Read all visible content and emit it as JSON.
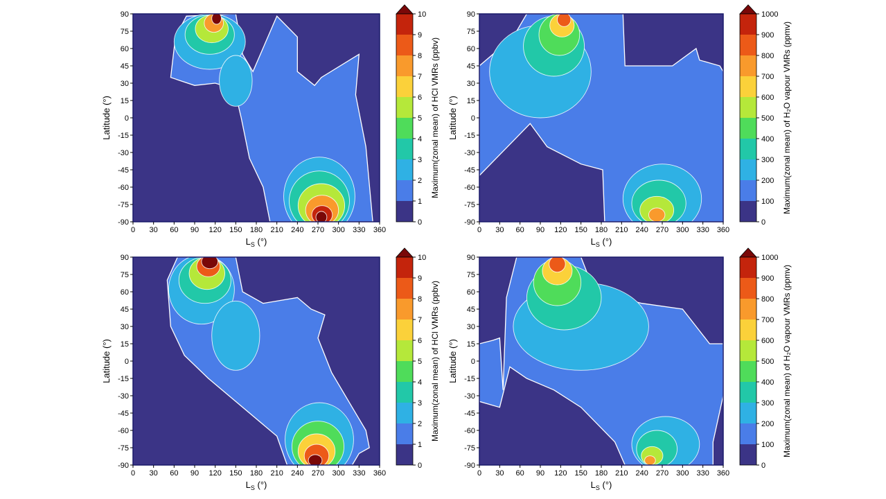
{
  "colors": {
    "levels": [
      "#3b3486",
      "#4a7de8",
      "#2fb1e4",
      "#22c8a8",
      "#4fdc5a",
      "#b5e83a",
      "#fbd13a",
      "#f99a2c",
      "#ec5a18",
      "#c4240c",
      "#7a0808"
    ],
    "contour_line": "#ffffff",
    "frame": "#1a1a6a"
  },
  "chart_data": [
    {
      "id": "hcl-top",
      "type": "heatmap",
      "xlabel": "L",
      "xlabel_sub": "S",
      "xlabel_unit": " (°)",
      "ylabel": "Latitude (°)",
      "xlim": [
        0,
        360
      ],
      "ylim": [
        -90,
        90
      ],
      "xticks": [
        "0",
        "30",
        "60",
        "90",
        "120",
        "150",
        "180",
        "210",
        "240",
        "270",
        "300",
        "330",
        "360"
      ],
      "yticks": [
        "90",
        "75",
        "60",
        "45",
        "30",
        "15",
        "0",
        "-15",
        "-30",
        "-45",
        "-60",
        "-75",
        "-90"
      ],
      "colorbar": {
        "label": "Maximum(zonal mean) of HCl VMRs (ppbv)",
        "ticks": [
          "0",
          "1",
          "2",
          "3",
          "4",
          "5",
          "6",
          "7",
          "8",
          "9",
          "10"
        ]
      },
      "features": [
        {
          "kind": "region",
          "level": 1,
          "poly": [
            [
              55,
              35
            ],
            [
              62,
              70
            ],
            [
              78,
              88
            ],
            [
              150,
              90
            ],
            [
              160,
              55
            ],
            [
              175,
              40
            ],
            [
              210,
              88
            ],
            [
              240,
              70
            ],
            [
              240,
              40
            ],
            [
              265,
              28
            ],
            [
              275,
              35
            ],
            [
              330,
              55
            ],
            [
              325,
              20
            ],
            [
              340,
              -25
            ],
            [
              350,
              -90
            ],
            [
              200,
              -90
            ],
            [
              190,
              -60
            ],
            [
              170,
              -35
            ],
            [
              158,
              0
            ],
            [
              148,
              25
            ],
            [
              120,
              30
            ],
            [
              90,
              28
            ],
            [
              70,
              32
            ]
          ]
        },
        {
          "kind": "blob",
          "level": 2,
          "cx": 112,
          "cy": 66,
          "rx": 52,
          "ry": 24
        },
        {
          "kind": "blob",
          "level": 2,
          "cx": 150,
          "cy": 32,
          "rx": 24,
          "ry": 22
        },
        {
          "kind": "blob",
          "level": 3,
          "cx": 112,
          "cy": 72,
          "rx": 36,
          "ry": 17
        },
        {
          "kind": "blob",
          "level": 5,
          "cx": 115,
          "cy": 77,
          "rx": 24,
          "ry": 12
        },
        {
          "kind": "blob",
          "level": 7,
          "cx": 118,
          "cy": 82,
          "rx": 14,
          "ry": 8
        },
        {
          "kind": "blob",
          "level": 10,
          "cx": 122,
          "cy": 86,
          "rx": 7,
          "ry": 5
        },
        {
          "kind": "blob",
          "level": 2,
          "cx": 272,
          "cy": -68,
          "rx": 52,
          "ry": 34
        },
        {
          "kind": "blob",
          "level": 3,
          "cx": 272,
          "cy": -72,
          "rx": 44,
          "ry": 26
        },
        {
          "kind": "blob",
          "level": 5,
          "cx": 275,
          "cy": -76,
          "rx": 34,
          "ry": 19
        },
        {
          "kind": "blob",
          "level": 7,
          "cx": 276,
          "cy": -80,
          "rx": 24,
          "ry": 13
        },
        {
          "kind": "blob",
          "level": 9,
          "cx": 276,
          "cy": -84,
          "rx": 15,
          "ry": 8
        },
        {
          "kind": "blob",
          "level": 10,
          "cx": 275,
          "cy": -86,
          "rx": 8,
          "ry": 5
        }
      ]
    },
    {
      "id": "h2o-top",
      "type": "heatmap",
      "xlabel": "L",
      "xlabel_sub": "S",
      "xlabel_unit": " (°)",
      "ylabel": "Latitude (°)",
      "xlim": [
        0,
        360
      ],
      "ylim": [
        -90,
        90
      ],
      "xticks": [
        "0",
        "30",
        "60",
        "90",
        "120",
        "150",
        "180",
        "210",
        "240",
        "270",
        "300",
        "330",
        "360"
      ],
      "yticks": [
        "90",
        "75",
        "60",
        "45",
        "30",
        "15",
        "0",
        "-15",
        "-30",
        "-45",
        "-60",
        "-75",
        "-90"
      ],
      "colorbar": {
        "label": "Maximum(zonal mean) of H₂O vapour VMRs (ppmv)",
        "ticks": [
          "0",
          "100",
          "200",
          "300",
          "400",
          "500",
          "600",
          "700",
          "800",
          "900",
          "1000"
        ]
      },
      "features": [
        {
          "kind": "region",
          "level": 1,
          "poly": [
            [
              0,
              45
            ],
            [
              50,
              70
            ],
            [
              70,
              90
            ],
            [
              212,
              90
            ],
            [
              215,
              45
            ],
            [
              285,
              45
            ],
            [
              320,
              60
            ],
            [
              325,
              50
            ],
            [
              355,
              45
            ],
            [
              360,
              40
            ],
            [
              360,
              -90
            ],
            [
              185,
              -90
            ],
            [
              182,
              -45
            ],
            [
              150,
              -40
            ],
            [
              100,
              -25
            ],
            [
              75,
              -5
            ],
            [
              50,
              -20
            ],
            [
              25,
              -35
            ],
            [
              0,
              -50
            ]
          ]
        },
        {
          "kind": "blob",
          "level": 2,
          "cx": 90,
          "cy": 40,
          "rx": 75,
          "ry": 40
        },
        {
          "kind": "blob",
          "level": 3,
          "cx": 110,
          "cy": 62,
          "rx": 45,
          "ry": 26
        },
        {
          "kind": "blob",
          "level": 4,
          "cx": 118,
          "cy": 72,
          "rx": 30,
          "ry": 18
        },
        {
          "kind": "blob",
          "level": 6,
          "cx": 122,
          "cy": 80,
          "rx": 18,
          "ry": 10
        },
        {
          "kind": "blob",
          "level": 8,
          "cx": 125,
          "cy": 85,
          "rx": 10,
          "ry": 6
        },
        {
          "kind": "blob",
          "level": 2,
          "cx": 270,
          "cy": -70,
          "rx": 58,
          "ry": 30
        },
        {
          "kind": "blob",
          "level": 3,
          "cx": 265,
          "cy": -74,
          "rx": 40,
          "ry": 20
        },
        {
          "kind": "blob",
          "level": 5,
          "cx": 262,
          "cy": -80,
          "rx": 25,
          "ry": 12
        },
        {
          "kind": "blob",
          "level": 7,
          "cx": 262,
          "cy": -84,
          "rx": 12,
          "ry": 6
        }
      ]
    },
    {
      "id": "hcl-bottom",
      "type": "heatmap",
      "xlabel": "L",
      "xlabel_sub": "S",
      "xlabel_unit": " (°)",
      "ylabel": "Latitude (°)",
      "xlim": [
        0,
        360
      ],
      "ylim": [
        -90,
        90
      ],
      "xticks": [
        "0",
        "30",
        "60",
        "90",
        "120",
        "150",
        "180",
        "210",
        "240",
        "270",
        "300",
        "330",
        "360"
      ],
      "yticks": [
        "90",
        "75",
        "60",
        "45",
        "30",
        "15",
        "0",
        "-15",
        "-30",
        "-45",
        "-60",
        "-75",
        "-90"
      ],
      "colorbar": {
        "label": "Maximum(zonal mean) of HCl VMRs (ppbv)",
        "ticks": [
          "0",
          "1",
          "2",
          "3",
          "4",
          "5",
          "6",
          "7",
          "8",
          "9",
          "10"
        ]
      },
      "features": [
        {
          "kind": "region",
          "level": 1,
          "poly": [
            [
              50,
              70
            ],
            [
              65,
              90
            ],
            [
              150,
              90
            ],
            [
              160,
              60
            ],
            [
              190,
              50
            ],
            [
              240,
              55
            ],
            [
              260,
              45
            ],
            [
              280,
              40
            ],
            [
              270,
              20
            ],
            [
              290,
              -10
            ],
            [
              320,
              -40
            ],
            [
              340,
              -60
            ],
            [
              345,
              -75
            ],
            [
              330,
              -80
            ],
            [
              320,
              -90
            ],
            [
              225,
              -90
            ],
            [
              210,
              -65
            ],
            [
              150,
              -35
            ],
            [
              110,
              -15
            ],
            [
              75,
              5
            ],
            [
              55,
              30
            ]
          ]
        },
        {
          "kind": "blob",
          "level": 2,
          "cx": 100,
          "cy": 62,
          "rx": 48,
          "ry": 30
        },
        {
          "kind": "blob",
          "level": 2,
          "cx": 150,
          "cy": 22,
          "rx": 35,
          "ry": 30
        },
        {
          "kind": "blob",
          "level": 3,
          "cx": 105,
          "cy": 70,
          "rx": 38,
          "ry": 20
        },
        {
          "kind": "blob",
          "level": 5,
          "cx": 108,
          "cy": 76,
          "rx": 26,
          "ry": 14
        },
        {
          "kind": "blob",
          "level": 8,
          "cx": 110,
          "cy": 82,
          "rx": 17,
          "ry": 9
        },
        {
          "kind": "blob",
          "level": 10,
          "cx": 112,
          "cy": 86,
          "rx": 12,
          "ry": 6
        },
        {
          "kind": "blob",
          "level": 2,
          "cx": 272,
          "cy": -68,
          "rx": 50,
          "ry": 32
        },
        {
          "kind": "blob",
          "level": 4,
          "cx": 270,
          "cy": -74,
          "rx": 38,
          "ry": 22
        },
        {
          "kind": "blob",
          "level": 6,
          "cx": 268,
          "cy": -78,
          "rx": 27,
          "ry": 15
        },
        {
          "kind": "blob",
          "level": 8,
          "cx": 268,
          "cy": -82,
          "rx": 18,
          "ry": 10
        },
        {
          "kind": "blob",
          "level": 10,
          "cx": 266,
          "cy": -86,
          "rx": 10,
          "ry": 5
        }
      ]
    },
    {
      "id": "h2o-bottom",
      "type": "heatmap",
      "xlabel": "L",
      "xlabel_sub": "S",
      "xlabel_unit": " (°)",
      "ylabel": "Latitude (°)",
      "xlim": [
        0,
        360
      ],
      "ylim": [
        -90,
        90
      ],
      "xticks": [
        "0",
        "30",
        "60",
        "90",
        "120",
        "150",
        "180",
        "210",
        "240",
        "270",
        "300",
        "330",
        "360"
      ],
      "yticks": [
        "90",
        "75",
        "60",
        "45",
        "30",
        "15",
        "0",
        "-15",
        "-30",
        "-45",
        "-60",
        "-75",
        "-90"
      ],
      "colorbar": {
        "label": "Maximum(zonal mean) of H₂O vapour VMRs (ppmv)",
        "ticks": [
          "0",
          "100",
          "200",
          "300",
          "400",
          "500",
          "600",
          "700",
          "800",
          "900",
          "1000"
        ]
      },
      "features": [
        {
          "kind": "region",
          "level": 1,
          "poly": [
            [
              0,
              15
            ],
            [
              20,
              18
            ],
            [
              30,
              20
            ],
            [
              35,
              -25
            ],
            [
              40,
              55
            ],
            [
              55,
              90
            ],
            [
              150,
              90
            ],
            [
              170,
              60
            ],
            [
              240,
              50
            ],
            [
              300,
              45
            ],
            [
              320,
              30
            ],
            [
              340,
              15
            ],
            [
              360,
              15
            ],
            [
              360,
              -30
            ],
            [
              345,
              -70
            ],
            [
              345,
              -90
            ],
            [
              215,
              -90
            ],
            [
              200,
              -70
            ],
            [
              150,
              -40
            ],
            [
              110,
              -25
            ],
            [
              70,
              -15
            ],
            [
              45,
              -5
            ],
            [
              30,
              -40
            ],
            [
              0,
              -35
            ]
          ]
        },
        {
          "kind": "blob",
          "level": 2,
          "cx": 150,
          "cy": 30,
          "rx": 100,
          "ry": 38
        },
        {
          "kind": "blob",
          "level": 3,
          "cx": 125,
          "cy": 55,
          "rx": 55,
          "ry": 28
        },
        {
          "kind": "blob",
          "level": 4,
          "cx": 115,
          "cy": 68,
          "rx": 35,
          "ry": 20
        },
        {
          "kind": "blob",
          "level": 6,
          "cx": 115,
          "cy": 78,
          "rx": 22,
          "ry": 12
        },
        {
          "kind": "blob",
          "level": 8,
          "cx": 115,
          "cy": 84,
          "rx": 12,
          "ry": 7
        },
        {
          "kind": "blob",
          "level": 2,
          "cx": 275,
          "cy": -72,
          "rx": 50,
          "ry": 24
        },
        {
          "kind": "blob",
          "level": 3,
          "cx": 262,
          "cy": -76,
          "rx": 30,
          "ry": 16
        },
        {
          "kind": "blob",
          "level": 5,
          "cx": 255,
          "cy": -82,
          "rx": 16,
          "ry": 8
        },
        {
          "kind": "blob",
          "level": 7,
          "cx": 252,
          "cy": -86,
          "rx": 8,
          "ry": 4
        }
      ]
    }
  ]
}
